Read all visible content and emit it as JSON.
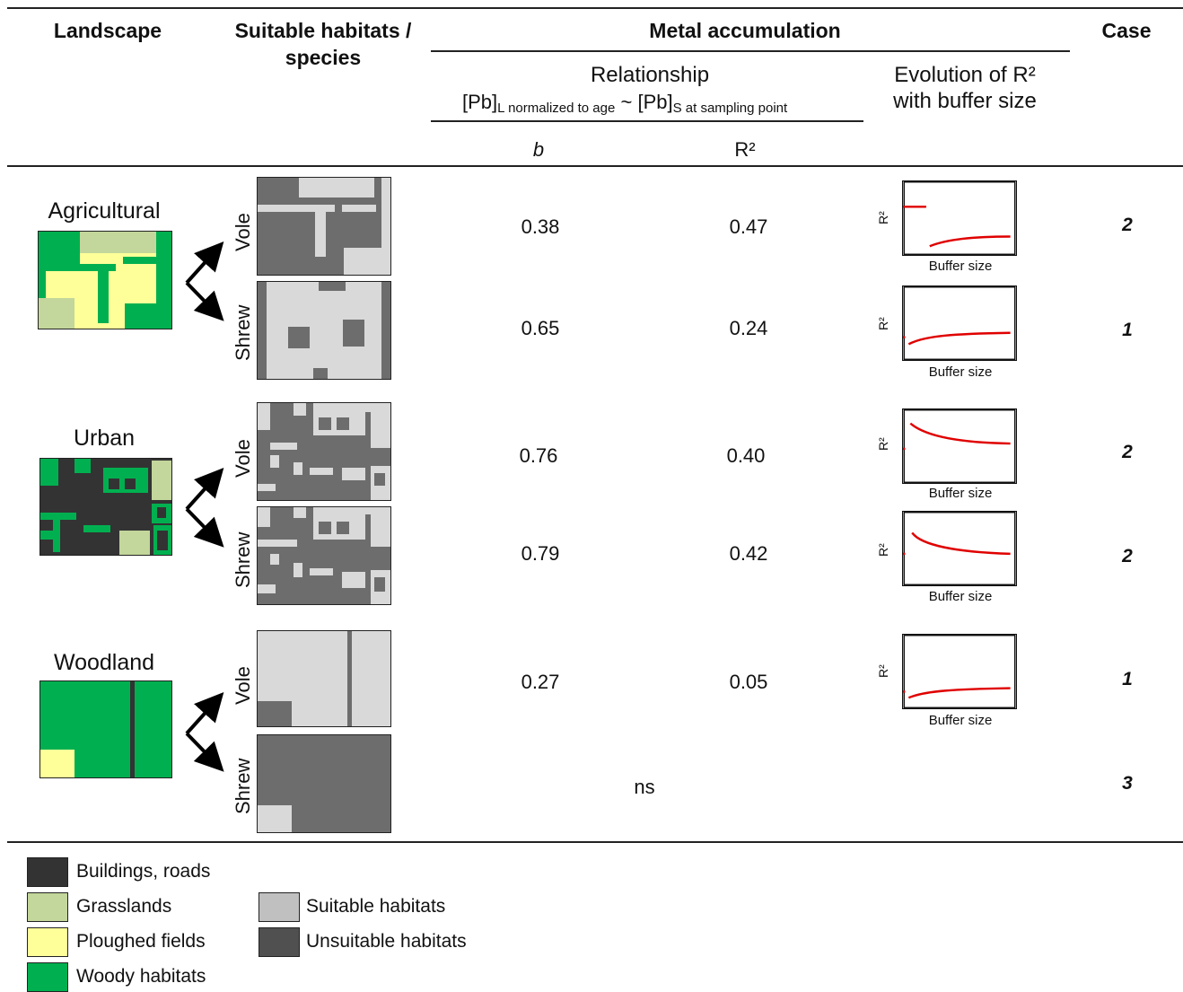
{
  "header": {
    "landscape": "Landscape",
    "suitable_habitats": "Suitable habitats / species",
    "metal_accumulation": "Metal accumulation",
    "case": "Case",
    "relationship": "Relationship",
    "formula_left": "[Pb]",
    "formula_left_sub": "L normalized to age",
    "formula_tilde": "~",
    "formula_right": "[Pb]",
    "formula_right_sub": "S at sampling point",
    "evolution_line1": "Evolution of R²",
    "evolution_line2": "with buffer size",
    "col_b": "b",
    "col_r2": "R²"
  },
  "landscapes": [
    {
      "name": "Agricultural"
    },
    {
      "name": "Urban"
    },
    {
      "name": "Woodland"
    }
  ],
  "rows": [
    {
      "species": "Vole",
      "b": "0.38",
      "r2": "0.47",
      "case": "2",
      "trend": "start-high-then-low-rising"
    },
    {
      "species": "Shrew",
      "b": "0.65",
      "r2": "0.24",
      "case": "1",
      "trend": "rising"
    },
    {
      "species": "Vole",
      "b": "0.76",
      "r2": "0.40",
      "case": "2",
      "trend": "falling"
    },
    {
      "species": "Shrew",
      "b": "0.79",
      "r2": "0.42",
      "case": "2",
      "trend": "falling"
    },
    {
      "species": "Vole",
      "b": "0.27",
      "r2": "0.05",
      "case": "1",
      "trend": "rising"
    },
    {
      "species": "Shrew",
      "ns": "ns",
      "case": "3"
    }
  ],
  "mini_chart": {
    "y_label": "R²",
    "x_label": "Buffer size",
    "line_color": "#ff0000"
  },
  "legend": {
    "buildings": "Buildings, roads",
    "grasslands": "Grasslands",
    "ploughed": "Ploughed fields",
    "woody": "Woody habitats",
    "suitable": "Suitable habitats",
    "unsuitable": "Unsuitable habitats"
  },
  "colors": {
    "buildings": "#333333",
    "grasslands": "#c3d69b",
    "ploughed": "#ffff99",
    "woody": "#00b050",
    "suitable": "#d9d9d9",
    "unsuitable": "#6d6d6d"
  }
}
